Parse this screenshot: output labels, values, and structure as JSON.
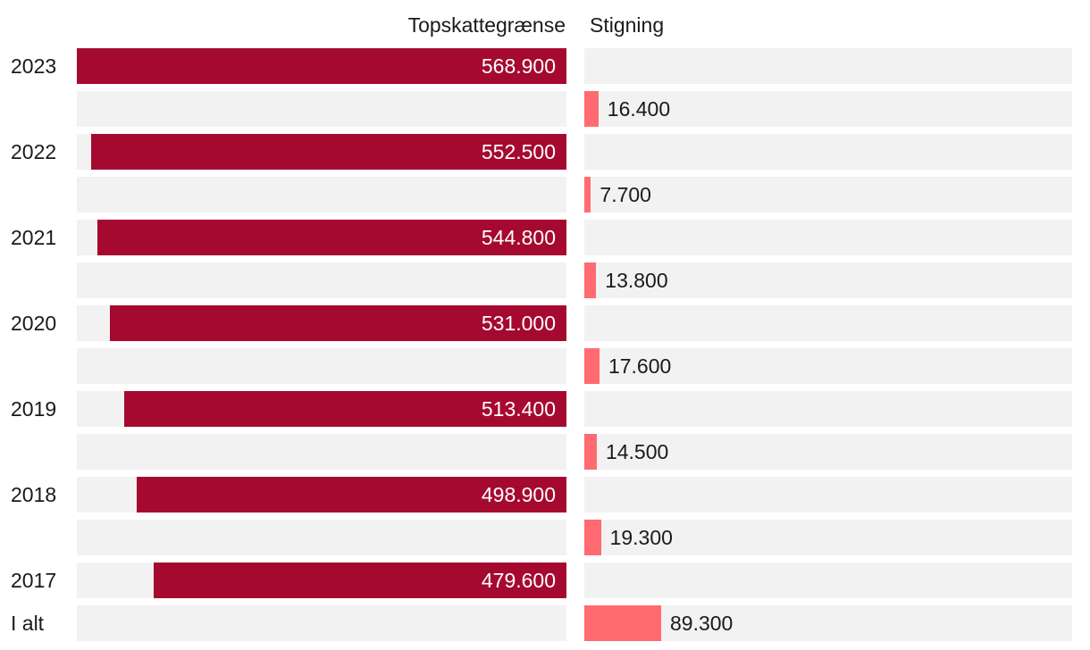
{
  "chart_data": {
    "type": "bar",
    "orientation": "horizontal",
    "headers": {
      "left": "Topskattegrænse",
      "right": "Stigning"
    },
    "colors": {
      "main": "#a6092f",
      "increase": "#ff6b70",
      "track": "#f2f2f2"
    },
    "xlim_main": [
      0,
      568900
    ],
    "xlim_increase": [
      0,
      89300
    ],
    "rows": [
      {
        "label": "2023",
        "series": "main",
        "value": 568900,
        "value_label": "568.900"
      },
      {
        "label": "",
        "series": "increase",
        "value": 16400,
        "value_label": "16.400"
      },
      {
        "label": "2022",
        "series": "main",
        "value": 552500,
        "value_label": "552.500"
      },
      {
        "label": "",
        "series": "increase",
        "value": 7700,
        "value_label": "7.700"
      },
      {
        "label": "2021",
        "series": "main",
        "value": 544800,
        "value_label": "544.800"
      },
      {
        "label": "",
        "series": "increase",
        "value": 13800,
        "value_label": "13.800"
      },
      {
        "label": "2020",
        "series": "main",
        "value": 531000,
        "value_label": "531.000"
      },
      {
        "label": "",
        "series": "increase",
        "value": 17600,
        "value_label": "17.600"
      },
      {
        "label": "2019",
        "series": "main",
        "value": 513400,
        "value_label": "513.400"
      },
      {
        "label": "",
        "series": "increase",
        "value": 14500,
        "value_label": "14.500"
      },
      {
        "label": "2018",
        "series": "main",
        "value": 498900,
        "value_label": "498.900"
      },
      {
        "label": "",
        "series": "increase",
        "value": 19300,
        "value_label": "19.300"
      },
      {
        "label": "2017",
        "series": "main",
        "value": 479600,
        "value_label": "479.600"
      },
      {
        "label": "I alt",
        "series": "increase",
        "value": 89300,
        "value_label": "89.300"
      }
    ]
  }
}
